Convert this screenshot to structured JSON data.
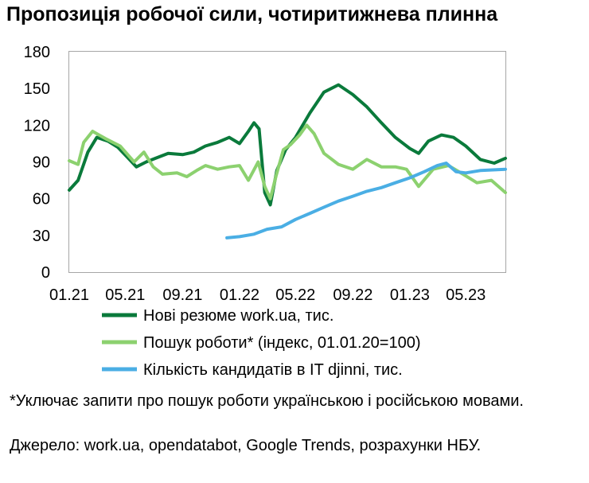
{
  "title": "Пропозиція робочої сили, чотиритижнева плинна",
  "chart_data": {
    "type": "line",
    "ylim": [
      0,
      180
    ],
    "yticks": [
      "0",
      "30",
      "60",
      "90",
      "120",
      "150",
      "180"
    ],
    "xlim": [
      "2021-01-01",
      "2023-07-25"
    ],
    "xticks": [
      "01.21",
      "05.21",
      "09.21",
      "01.22",
      "05.22",
      "09.22",
      "01.23",
      "05.23"
    ],
    "grid": false,
    "legend_position": "bottom",
    "series": [
      {
        "name": "Нові резюме work.ua, тис.",
        "color": "#0a7a3b",
        "points": [
          [
            "2021-01-01",
            67
          ],
          [
            "2021-01-20",
            75
          ],
          [
            "2021-02-10",
            98
          ],
          [
            "2021-03-01",
            110
          ],
          [
            "2021-03-25",
            107
          ],
          [
            "2021-04-15",
            102
          ],
          [
            "2021-05-05",
            94
          ],
          [
            "2021-05-25",
            86
          ],
          [
            "2021-06-15",
            90
          ],
          [
            "2021-07-05",
            93
          ],
          [
            "2021-08-01",
            97
          ],
          [
            "2021-09-01",
            96
          ],
          [
            "2021-09-25",
            98
          ],
          [
            "2021-10-20",
            103
          ],
          [
            "2021-11-15",
            106
          ],
          [
            "2021-12-10",
            110
          ],
          [
            "2022-01-01",
            105
          ],
          [
            "2022-01-20",
            115
          ],
          [
            "2022-02-01",
            122
          ],
          [
            "2022-02-12",
            117
          ],
          [
            "2022-02-24",
            65
          ],
          [
            "2022-03-08",
            55
          ],
          [
            "2022-03-22",
            83
          ],
          [
            "2022-04-10",
            100
          ],
          [
            "2022-05-01",
            110
          ],
          [
            "2022-06-01",
            130
          ],
          [
            "2022-07-01",
            147
          ],
          [
            "2022-08-01",
            153
          ],
          [
            "2022-09-01",
            145
          ],
          [
            "2022-10-01",
            135
          ],
          [
            "2022-11-01",
            122
          ],
          [
            "2022-12-01",
            110
          ],
          [
            "2023-01-01",
            101
          ],
          [
            "2023-01-20",
            97
          ],
          [
            "2023-02-10",
            107
          ],
          [
            "2023-03-10",
            112
          ],
          [
            "2023-04-05",
            110
          ],
          [
            "2023-05-01",
            103
          ],
          [
            "2023-06-01",
            92
          ],
          [
            "2023-07-01",
            89
          ],
          [
            "2023-07-25",
            93
          ]
        ]
      },
      {
        "name": "Пошук роботи* (індекс, 01.01.20=100)",
        "color": "#8cd16f",
        "points": [
          [
            "2021-01-01",
            91
          ],
          [
            "2021-01-20",
            88
          ],
          [
            "2021-02-01",
            106
          ],
          [
            "2021-02-20",
            115
          ],
          [
            "2021-03-20",
            109
          ],
          [
            "2021-04-20",
            103
          ],
          [
            "2021-05-20",
            90
          ],
          [
            "2021-06-10",
            98
          ],
          [
            "2021-06-30",
            86
          ],
          [
            "2021-07-20",
            80
          ],
          [
            "2021-08-20",
            81
          ],
          [
            "2021-09-10",
            78
          ],
          [
            "2021-10-01",
            83
          ],
          [
            "2021-10-20",
            87
          ],
          [
            "2021-11-15",
            84
          ],
          [
            "2021-12-10",
            86
          ],
          [
            "2022-01-01",
            87
          ],
          [
            "2022-01-20",
            75
          ],
          [
            "2022-02-10",
            90
          ],
          [
            "2022-02-24",
            70
          ],
          [
            "2022-03-08",
            60
          ],
          [
            "2022-03-20",
            78
          ],
          [
            "2022-04-05",
            100
          ],
          [
            "2022-04-20",
            104
          ],
          [
            "2022-05-10",
            112
          ],
          [
            "2022-05-25",
            120
          ],
          [
            "2022-06-10",
            113
          ],
          [
            "2022-07-01",
            97
          ],
          [
            "2022-08-01",
            88
          ],
          [
            "2022-09-01",
            84
          ],
          [
            "2022-10-01",
            92
          ],
          [
            "2022-11-01",
            86
          ],
          [
            "2022-12-01",
            86
          ],
          [
            "2022-12-25",
            84
          ],
          [
            "2023-01-20",
            70
          ],
          [
            "2023-02-20",
            84
          ],
          [
            "2023-03-25",
            87
          ],
          [
            "2023-04-25",
            80
          ],
          [
            "2023-05-25",
            73
          ],
          [
            "2023-06-25",
            75
          ],
          [
            "2023-07-25",
            65
          ]
        ]
      },
      {
        "name": "Кількість кандидатів в IT djinni, тис.",
        "color": "#4aaee4",
        "points": [
          [
            "2021-12-05",
            28
          ],
          [
            "2022-01-01",
            29
          ],
          [
            "2022-02-01",
            31
          ],
          [
            "2022-03-01",
            35
          ],
          [
            "2022-04-01",
            37
          ],
          [
            "2022-05-01",
            43
          ],
          [
            "2022-06-01",
            48
          ],
          [
            "2022-07-01",
            53
          ],
          [
            "2022-08-01",
            58
          ],
          [
            "2022-09-01",
            62
          ],
          [
            "2022-10-01",
            66
          ],
          [
            "2022-11-01",
            69
          ],
          [
            "2022-12-01",
            73
          ],
          [
            "2023-01-01",
            77
          ],
          [
            "2023-02-01",
            82
          ],
          [
            "2023-03-01",
            87
          ],
          [
            "2023-03-20",
            89
          ],
          [
            "2023-04-10",
            82
          ],
          [
            "2023-05-01",
            81
          ],
          [
            "2023-06-01",
            83
          ],
          [
            "2023-07-25",
            84
          ]
        ]
      }
    ]
  },
  "note": "*Уключає запити про пошук роботи українською і російською мовами.",
  "source": "Джерело: work.ua, opendatabot, Google Trends, розрахунки НБУ."
}
